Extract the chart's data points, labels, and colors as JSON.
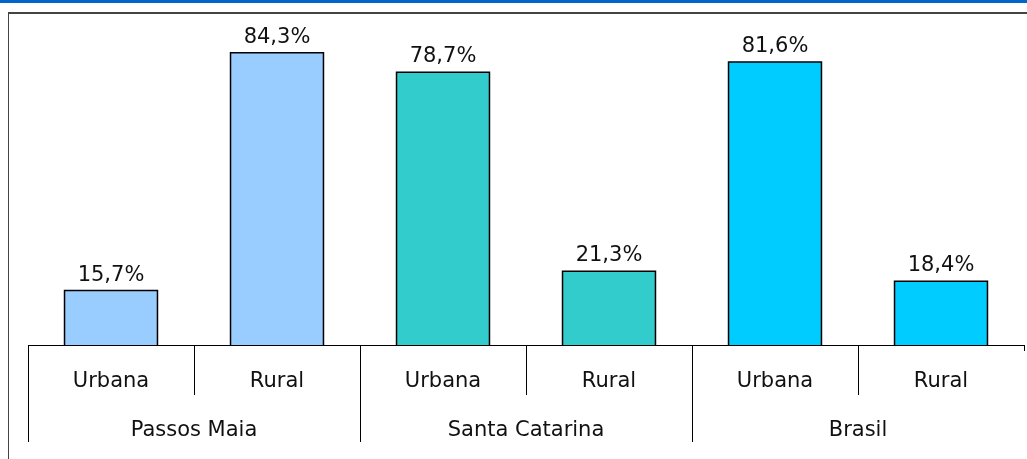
{
  "chart_data": {
    "type": "bar",
    "categories": [
      "Urbana",
      "Rural",
      "Urbana",
      "Rural",
      "Urbana",
      "Rural"
    ],
    "values": [
      15.7,
      84.3,
      78.7,
      21.3,
      81.6,
      18.4
    ],
    "colors": [
      "#99ccff",
      "#99ccff",
      "#33cccc",
      "#33cccc",
      "#00ccff",
      "#00ccff"
    ],
    "value_labels": [
      "15,7%",
      "84,3%",
      "78,7%",
      "21,3%",
      "81,6%",
      "18,4%"
    ],
    "annotations": [
      "Passos Maia",
      "Santa Catarina",
      "Brasil"
    ]
  }
}
